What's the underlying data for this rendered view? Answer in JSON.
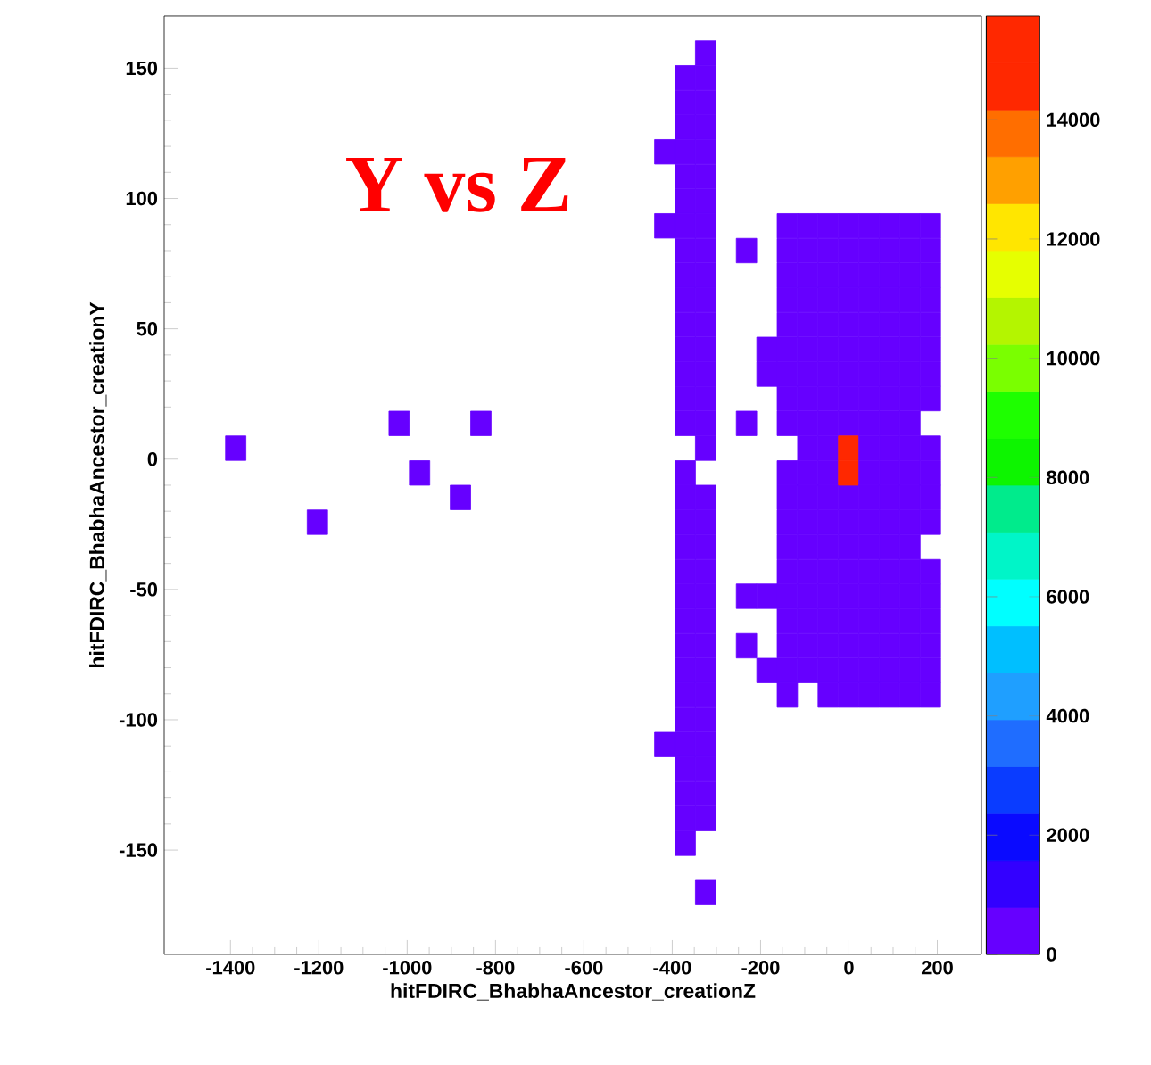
{
  "chart_data": {
    "type": "scatter",
    "title": "Y vs Z",
    "xlabel": "hitFDIRC_BhabhaAncestor_creationZ",
    "ylabel": "hitFDIRC_BhabhaAncestor_creationY",
    "marker": "square",
    "xlim": [
      -1550,
      300
    ],
    "ylim": [
      -190,
      170
    ],
    "xticks": [
      -1400,
      -1200,
      -1000,
      -800,
      -600,
      -400,
      -200,
      0,
      200
    ],
    "yticks": [
      -150,
      -100,
      -50,
      0,
      50,
      100,
      150
    ],
    "clim": [
      0,
      15740
    ],
    "cticks": [
      0,
      2000,
      4000,
      6000,
      8000,
      10000,
      12000,
      14000
    ],
    "series": [
      {
        "x": [
          -1388.1,
          -1203.1,
          -1018.1,
          -971.9,
          -879.4,
          -833.1
        ],
        "values": [
          4.2,
          -24.2,
          13.7,
          -5.3,
          -14.7,
          13.7
        ],
        "cvalues": [
          400,
          400,
          400,
          400,
          400,
          400
        ]
      },
      {
        "x": [
          -416.9,
          -416.9,
          -416.9
        ],
        "values": [
          117.9,
          89.5,
          -109.5
        ],
        "cvalues": [
          400,
          400,
          400
        ]
      },
      {
        "x": [
          -370.6,
          -370.6,
          -370.6,
          -370.6,
          -370.6,
          -370.6,
          -370.6,
          -370.6,
          -370.6,
          -370.6,
          -370.6,
          -370.6,
          -370.6,
          -370.6,
          -370.6,
          -370.6,
          -370.6,
          -370.6,
          -370.6,
          -370.6,
          -370.6,
          -370.6,
          -370.6,
          -370.6,
          -370.6,
          -370.6,
          -370.6,
          -370.6,
          -370.6,
          -370.6,
          -370.6
        ],
        "values": [
          146.3,
          136.8,
          127.4,
          117.9,
          108.4,
          98.9,
          89.5,
          80.0,
          70.5,
          61.1,
          51.6,
          42.1,
          32.6,
          23.2,
          13.7,
          -5.3,
          -14.7,
          -24.2,
          -33.7,
          -43.2,
          -52.6,
          -62.1,
          -71.6,
          -81.1,
          -90.5,
          -100.0,
          -109.5,
          -118.9,
          -128.4,
          -137.9,
          -147.4
        ],
        "cvalues": [
          400,
          400,
          400,
          400,
          400,
          400,
          400,
          400,
          400,
          400,
          400,
          400,
          400,
          400,
          400,
          400,
          400,
          400,
          400,
          400,
          400,
          400,
          400,
          400,
          400,
          400,
          400,
          400,
          400,
          400,
          400
        ]
      },
      {
        "x": [
          -324.4,
          -324.4,
          -324.4,
          -324.4,
          -324.4,
          -324.4,
          -324.4,
          -324.4,
          -324.4,
          -324.4,
          -324.4,
          -324.4,
          -324.4,
          -324.4,
          -324.4,
          -324.4,
          -324.4,
          -324.4,
          -324.4,
          -324.4,
          -324.4,
          -324.4,
          -324.4,
          -324.4,
          -324.4,
          -324.4,
          -324.4,
          -324.4,
          -324.4,
          -324.4,
          -324.4,
          -324.4
        ],
        "values": [
          155.8,
          146.3,
          136.8,
          127.4,
          117.9,
          108.4,
          98.9,
          89.5,
          80.0,
          70.5,
          61.1,
          51.6,
          42.1,
          32.6,
          23.2,
          13.7,
          4.2,
          -14.7,
          -24.2,
          -33.7,
          -43.2,
          -52.6,
          -62.1,
          -71.6,
          -81.1,
          -90.5,
          -100.0,
          -109.5,
          -118.9,
          -128.4,
          -137.9,
          -166.3
        ],
        "cvalues": [
          400,
          400,
          400,
          400,
          400,
          400,
          400,
          400,
          400,
          400,
          400,
          400,
          400,
          400,
          400,
          400,
          400,
          400,
          400,
          400,
          400,
          400,
          400,
          400,
          400,
          400,
          400,
          400,
          400,
          400,
          400,
          400
        ]
      },
      {
        "x": [
          -231.9,
          -231.9,
          -231.9,
          -231.9
        ],
        "values": [
          80.0,
          13.7,
          -52.6,
          -71.6
        ],
        "cvalues": [
          400,
          400,
          400,
          400
        ]
      },
      {
        "x": [
          -185.6,
          -185.6,
          -185.6,
          -185.6
        ],
        "values": [
          42.1,
          32.6,
          -52.6,
          -81.1
        ],
        "cvalues": [
          400,
          400,
          400,
          400
        ]
      },
      {
        "x": [
          -139.4,
          -139.4,
          -139.4,
          -139.4,
          -139.4,
          -139.4,
          -139.4,
          -139.4,
          -139.4,
          -139.4,
          -139.4,
          -139.4,
          -139.4,
          -139.4,
          -139.4,
          -139.4,
          -139.4,
          -139.4,
          -139.4
        ],
        "values": [
          89.5,
          80.0,
          70.5,
          61.1,
          51.6,
          42.1,
          32.6,
          23.2,
          13.7,
          -5.3,
          -14.7,
          -24.2,
          -33.7,
          -43.2,
          -52.6,
          -62.1,
          -71.6,
          -81.1,
          -90.5
        ],
        "cvalues": [
          400,
          400,
          400,
          400,
          400,
          400,
          400,
          400,
          400,
          400,
          400,
          400,
          400,
          400,
          400,
          400,
          400,
          400,
          400
        ]
      },
      {
        "x": [
          -93.1,
          -93.1,
          -93.1,
          -93.1,
          -93.1,
          -93.1,
          -93.1,
          -93.1,
          -93.1,
          -93.1,
          -93.1,
          -93.1,
          -93.1,
          -93.1,
          -93.1,
          -93.1,
          -93.1,
          -93.1,
          -93.1
        ],
        "values": [
          89.5,
          80.0,
          70.5,
          61.1,
          51.6,
          42.1,
          32.6,
          23.2,
          13.7,
          4.2,
          -5.3,
          -14.7,
          -24.2,
          -33.7,
          -43.2,
          -52.6,
          -62.1,
          -71.6,
          -81.1
        ],
        "cvalues": [
          400,
          400,
          400,
          400,
          400,
          400,
          400,
          400,
          400,
          400,
          400,
          400,
          400,
          400,
          400,
          400,
          400,
          400,
          400
        ]
      },
      {
        "x": [
          -46.9,
          -46.9,
          -46.9,
          -46.9,
          -46.9,
          -46.9,
          -46.9,
          -46.9,
          -46.9,
          -46.9,
          -46.9,
          -46.9,
          -46.9,
          -46.9,
          -46.9,
          -46.9,
          -46.9,
          -46.9,
          -46.9,
          -46.9
        ],
        "values": [
          89.5,
          80.0,
          70.5,
          61.1,
          51.6,
          42.1,
          32.6,
          23.2,
          13.7,
          4.2,
          -5.3,
          -14.7,
          -24.2,
          -33.7,
          -43.2,
          -52.6,
          -62.1,
          -71.6,
          -81.1,
          -90.5
        ],
        "cvalues": [
          400,
          400,
          400,
          400,
          400,
          400,
          400,
          400,
          400,
          400,
          400,
          400,
          400,
          400,
          400,
          400,
          400,
          400,
          400,
          400
        ]
      },
      {
        "x": [
          -0.6,
          -0.6,
          -0.6,
          -0.6,
          -0.6,
          -0.6,
          -0.6,
          -0.6,
          -0.6,
          -0.6,
          -0.6,
          -0.6,
          -0.6,
          -0.6,
          -0.6,
          -0.6,
          -0.6,
          -0.6
        ],
        "values": [
          89.5,
          80.0,
          70.5,
          61.1,
          51.6,
          42.1,
          32.6,
          23.2,
          13.7,
          -14.7,
          -24.2,
          -33.7,
          -43.2,
          -52.6,
          -62.1,
          -71.6,
          -81.1,
          -90.5
        ],
        "cvalues": [
          400,
          400,
          400,
          400,
          400,
          400,
          400,
          400,
          400,
          400,
          400,
          400,
          400,
          400,
          400,
          400,
          400,
          400
        ]
      },
      {
        "x": [
          -0.6,
          -0.6
        ],
        "values": [
          4.2,
          -5.3
        ],
        "cvalues": [
          15400,
          15400
        ]
      },
      {
        "x": [
          45.6,
          45.6,
          45.6,
          45.6,
          45.6,
          45.6,
          45.6,
          45.6,
          45.6,
          45.6,
          45.6,
          45.6,
          45.6,
          45.6,
          45.6,
          45.6,
          45.6,
          45.6,
          45.6,
          45.6
        ],
        "values": [
          89.5,
          80.0,
          70.5,
          61.1,
          51.6,
          42.1,
          32.6,
          23.2,
          13.7,
          4.2,
          -5.3,
          -14.7,
          -24.2,
          -33.7,
          -43.2,
          -52.6,
          -62.1,
          -71.6,
          -81.1,
          -90.5
        ],
        "cvalues": [
          400,
          400,
          400,
          400,
          400,
          400,
          400,
          400,
          400,
          400,
          400,
          400,
          400,
          400,
          400,
          400,
          400,
          400,
          400,
          400
        ]
      },
      {
        "x": [
          91.9,
          91.9,
          91.9,
          91.9,
          91.9,
          91.9,
          91.9,
          91.9,
          91.9,
          91.9,
          91.9,
          91.9,
          91.9,
          91.9,
          91.9,
          91.9,
          91.9,
          91.9,
          91.9,
          91.9
        ],
        "values": [
          89.5,
          80.0,
          70.5,
          61.1,
          51.6,
          42.1,
          32.6,
          23.2,
          13.7,
          4.2,
          -5.3,
          -14.7,
          -24.2,
          -33.7,
          -43.2,
          -52.6,
          -62.1,
          -71.6,
          -81.1,
          -90.5
        ],
        "cvalues": [
          400,
          400,
          400,
          400,
          400,
          400,
          400,
          400,
          400,
          400,
          400,
          400,
          400,
          400,
          400,
          400,
          400,
          400,
          400,
          400
        ]
      },
      {
        "x": [
          138.1,
          138.1,
          138.1,
          138.1,
          138.1,
          138.1,
          138.1,
          138.1,
          138.1,
          138.1,
          138.1,
          138.1,
          138.1,
          138.1,
          138.1,
          138.1,
          138.1,
          138.1,
          138.1,
          138.1
        ],
        "values": [
          89.5,
          80.0,
          70.5,
          61.1,
          51.6,
          42.1,
          32.6,
          23.2,
          13.7,
          4.2,
          -5.3,
          -14.7,
          -24.2,
          -33.7,
          -43.2,
          -52.6,
          -62.1,
          -71.6,
          -81.1,
          -90.5
        ],
        "cvalues": [
          400,
          400,
          400,
          400,
          400,
          400,
          400,
          400,
          400,
          400,
          400,
          400,
          400,
          400,
          400,
          400,
          400,
          400,
          400,
          400
        ]
      },
      {
        "x": [
          184.4,
          184.4,
          184.4,
          184.4,
          184.4,
          184.4,
          184.4,
          184.4,
          184.4,
          184.4,
          184.4,
          184.4,
          184.4,
          184.4,
          184.4,
          184.4,
          184.4,
          184.4
        ],
        "values": [
          89.5,
          80.0,
          70.5,
          61.1,
          51.6,
          42.1,
          32.6,
          23.2,
          4.2,
          -5.3,
          -14.7,
          -24.2,
          -43.2,
          -52.6,
          -62.1,
          -71.6,
          -81.1,
          -90.5
        ],
        "cvalues": [
          400,
          400,
          400,
          400,
          400,
          400,
          400,
          400,
          400,
          400,
          400,
          400,
          400,
          400,
          400,
          400,
          400,
          400
        ]
      }
    ]
  }
}
